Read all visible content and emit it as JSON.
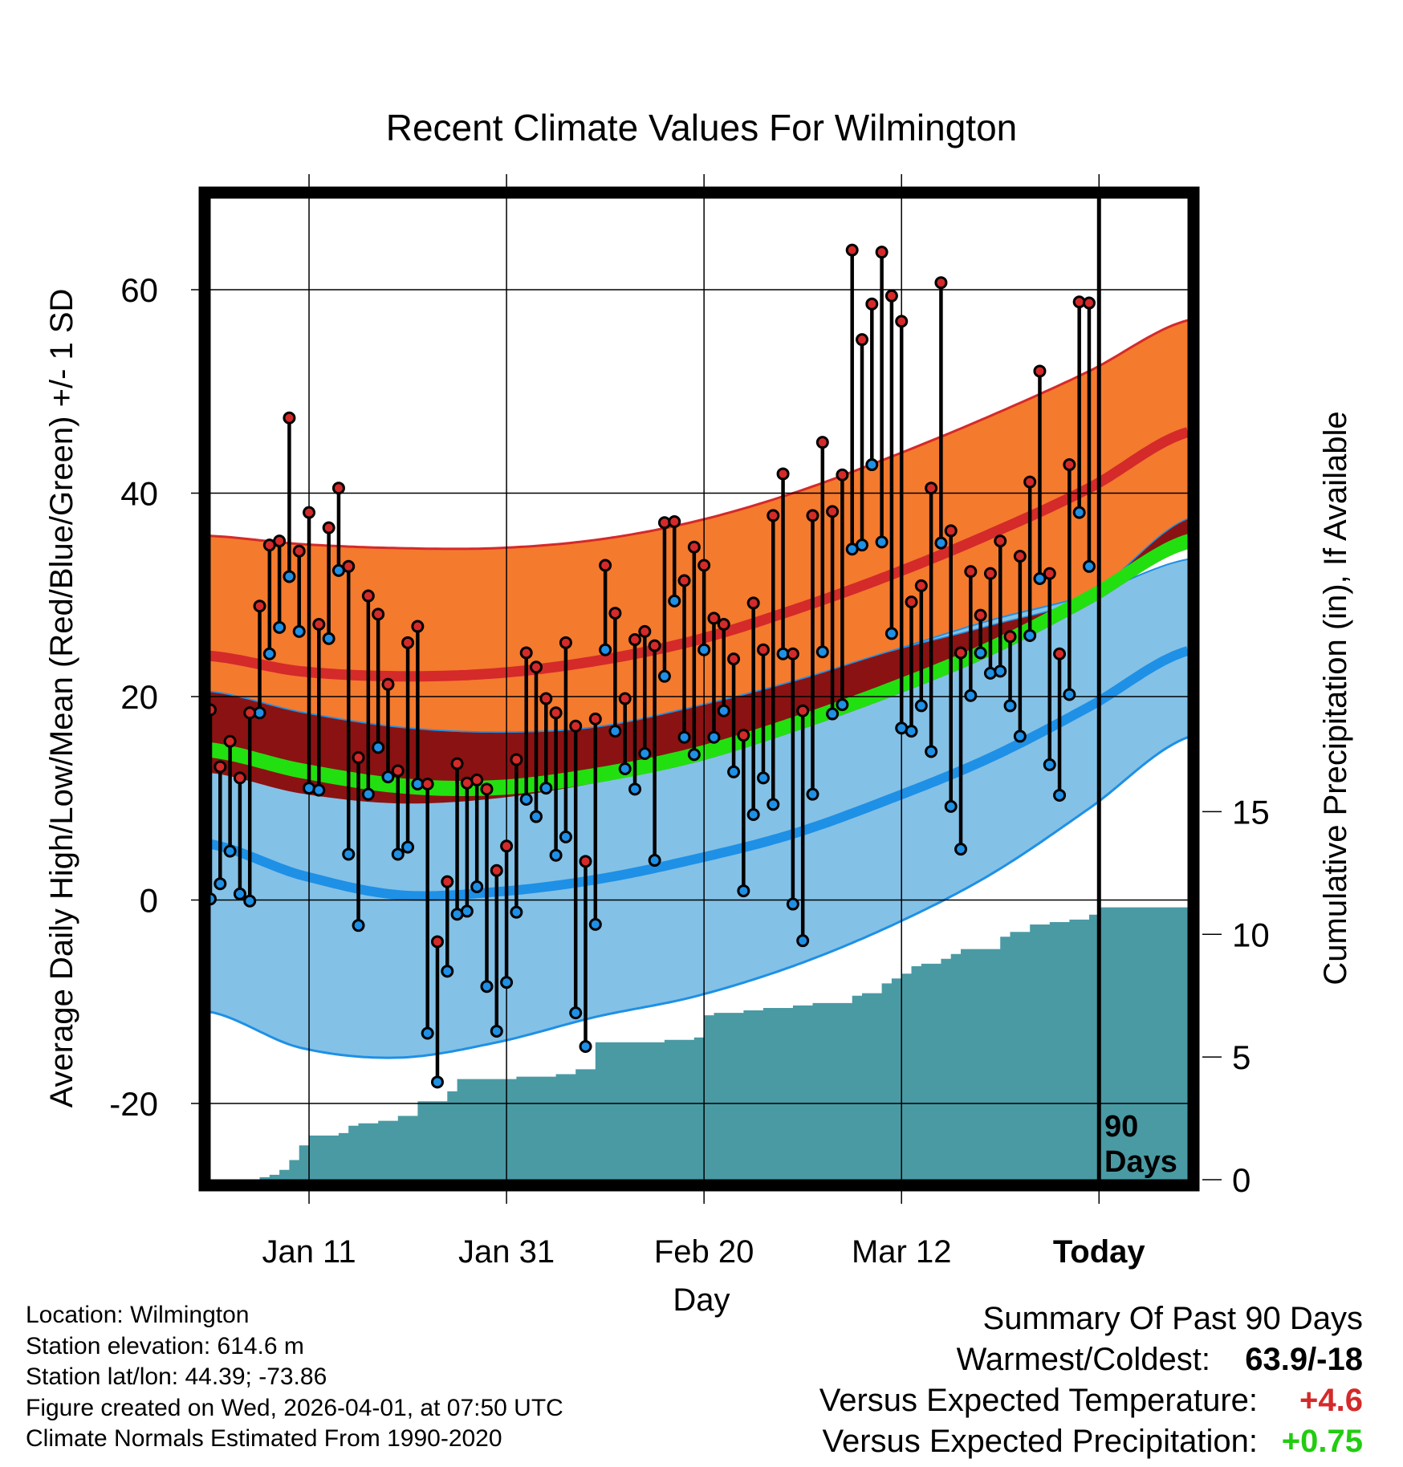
{
  "chart_data": {
    "type": "line",
    "title": "Recent Climate Values For Wilmington",
    "xlabel": "Day",
    "ylabel_left": "Average Daily High/Low/Mean (Red/Blue/Green) +/- 1 SD",
    "ylabel_right": "Cumulative Precipitation (in), If Available",
    "ylim_left": [
      -27.5,
      69
    ],
    "ylim_right": [
      0,
      40
    ],
    "xlim_days": [
      1,
      100
    ],
    "x_ticks": [
      {
        "day": 11,
        "label": "Jan 11"
      },
      {
        "day": 31,
        "label": "Jan 31"
      },
      {
        "day": 51,
        "label": "Feb 20"
      },
      {
        "day": 71,
        "label": "Mar 12"
      },
      {
        "day": 91,
        "label": "Today"
      }
    ],
    "y_ticks_left": [
      "60",
      "40",
      "20",
      "0",
      "-20"
    ],
    "y_ticks_right": [
      "15",
      "10",
      "5",
      "0"
    ],
    "today_marker": {
      "day": 91,
      "label_line1": "90",
      "label_line2": "Days"
    },
    "normals": {
      "days": [
        1,
        10,
        20,
        30,
        40,
        50,
        60,
        70,
        80,
        90,
        100
      ],
      "high_upper": [
        35.8,
        35.0,
        34.6,
        34.6,
        35.4,
        37.2,
        40.0,
        43.6,
        47.6,
        52.0,
        57.0
      ],
      "high_mean": [
        24.0,
        22.5,
        22.0,
        22.3,
        23.5,
        25.5,
        28.5,
        32.0,
        36.0,
        40.5,
        46.0
      ],
      "high_lower": [
        20.5,
        18.5,
        17.0,
        16.5,
        17.0,
        19.0,
        21.5,
        24.5,
        27.0,
        30.0,
        37.5
      ],
      "low_upper": [
        20.5,
        18.5,
        17.0,
        16.5,
        17.0,
        19.0,
        21.5,
        24.5,
        27.5,
        30.0,
        33.5
      ],
      "low_mean": [
        5.5,
        2.5,
        0.5,
        0.8,
        2.0,
        4.0,
        6.5,
        10.0,
        14.0,
        19.0,
        24.5
      ],
      "low_lower": [
        -11.0,
        -14.5,
        -15.5,
        -14.0,
        -11.5,
        -9.5,
        -6.5,
        -2.5,
        2.5,
        9.0,
        16.0
      ],
      "mean_upper": [
        15.5,
        13.5,
        12.0,
        11.8,
        13.0,
        15.0,
        18.0,
        21.5,
        25.5,
        30.5,
        36.0
      ],
      "mean_lower": [
        14.0,
        12.0,
        10.5,
        10.3,
        11.5,
        13.5,
        16.5,
        20.0,
        24.0,
        29.0,
        34.5
      ],
      "high_lower_margin_upper": [
        20.5,
        18.5,
        17.0,
        16.5,
        17.0,
        19.0,
        21.5,
        24.5,
        27.0,
        30.0,
        37.5
      ],
      "high_lower_margin_lower": [
        12.5,
        10.5,
        9.5,
        10.0,
        11.5,
        13.5,
        16.5,
        20.0,
        24.0,
        29.0,
        34.5
      ]
    },
    "series": [
      {
        "name": "Daily High",
        "color": "#d42a2a",
        "values": [
          18.7,
          13.1,
          15.6,
          12.0,
          18.4,
          28.9,
          34.9,
          35.3,
          47.4,
          34.3,
          38.1,
          27.1,
          36.6,
          40.5,
          32.8,
          14.0,
          29.9,
          28.1,
          21.2,
          12.7,
          25.3,
          26.9,
          11.4,
          -4.1,
          1.8,
          13.4,
          11.5,
          11.8,
          10.9,
          2.9,
          5.3,
          13.8,
          24.3,
          22.9,
          19.8,
          18.4,
          25.3,
          17.1,
          3.8,
          17.8,
          32.9,
          28.2,
          19.8,
          25.6,
          26.4,
          25.0,
          37.1,
          37.2,
          31.4,
          34.7,
          32.9,
          27.7,
          27.1,
          23.7,
          16.2,
          29.2,
          24.6,
          37.8,
          41.9,
          24.2,
          18.6,
          37.8,
          45.0,
          38.2,
          41.8,
          63.9,
          55.1,
          58.6,
          63.7,
          59.4,
          56.9,
          29.3,
          30.9,
          40.5,
          60.7,
          36.3,
          24.3,
          32.3,
          28.0,
          32.1,
          35.3,
          25.9,
          33.8,
          41.1,
          52.0,
          32.1,
          24.2,
          42.8,
          58.8,
          58.7
        ]
      },
      {
        "name": "Daily Low",
        "color": "#1e90e6",
        "values": [
          0.1,
          1.6,
          4.8,
          0.6,
          -0.1,
          18.4,
          24.2,
          26.8,
          31.8,
          26.4,
          11.0,
          10.8,
          25.7,
          32.4,
          4.5,
          -2.5,
          10.4,
          15.0,
          12.1,
          4.5,
          5.2,
          11.4,
          -13.1,
          -17.9,
          -7.0,
          -1.4,
          -1.1,
          1.3,
          -8.5,
          -12.9,
          -8.1,
          -1.2,
          9.9,
          8.2,
          11.0,
          4.4,
          6.2,
          -11.1,
          -14.4,
          -2.4,
          24.6,
          16.6,
          12.9,
          10.9,
          14.4,
          3.9,
          22.0,
          29.4,
          16.0,
          14.3,
          24.6,
          16.0,
          18.6,
          12.6,
          0.9,
          8.4,
          12.0,
          9.4,
          24.2,
          -0.4,
          -4.0,
          10.4,
          24.4,
          18.3,
          19.2,
          34.5,
          34.9,
          42.8,
          35.2,
          26.2,
          16.9,
          16.6,
          19.1,
          14.6,
          35.1,
          9.2,
          5.0,
          20.1,
          24.3,
          22.3,
          22.5,
          19.1,
          16.1,
          26.0,
          31.6,
          13.3,
          10.3,
          20.2,
          38.1,
          32.8
        ]
      }
    ],
    "precip": {
      "days": [
        1,
        6,
        7,
        8,
        9,
        10,
        11,
        12,
        13,
        14,
        15,
        16,
        17,
        18,
        20,
        22,
        23,
        25,
        26,
        27,
        28,
        30,
        32,
        36,
        38,
        40,
        41,
        47,
        50,
        51,
        52,
        53,
        55,
        57,
        60,
        62,
        66,
        67,
        69,
        70,
        71,
        72,
        73,
        74,
        75,
        76,
        77,
        79,
        80,
        81,
        82,
        84,
        85,
        86,
        88,
        90,
        91,
        92,
        100
      ],
      "values": [
        0,
        0.1,
        0.2,
        0.4,
        0.8,
        1.4,
        1.8,
        1.8,
        1.8,
        1.9,
        2.2,
        2.3,
        2.3,
        2.4,
        2.6,
        3.2,
        3.2,
        3.6,
        4.1,
        4.1,
        4.1,
        4.1,
        4.2,
        4.3,
        4.5,
        5.6,
        5.6,
        5.7,
        5.8,
        6.7,
        6.8,
        6.8,
        6.9,
        7.0,
        7.1,
        7.2,
        7.5,
        7.6,
        8.0,
        8.2,
        8.4,
        8.7,
        8.8,
        8.8,
        9.0,
        9.2,
        9.4,
        9.4,
        9.4,
        9.9,
        10.1,
        10.4,
        10.4,
        10.5,
        10.6,
        10.8,
        11.1,
        11.1,
        11.1
      ]
    }
  },
  "footer": {
    "location": "Location: Wilmington",
    "elevation": "Station elevation: 614.6 m",
    "latlon": "Station lat/lon: 44.39; -73.86",
    "created": "Figure created on Wed, 2026-04-01, at 07:50 UTC",
    "normals_note": "Climate Normals Estimated From 1990-2020"
  },
  "summary": {
    "title": "Summary Of Past 90 Days",
    "warmest_coldest_label": "Warmest/Coldest:",
    "warmest_coldest_value": "63.9/-18",
    "temp_label": "Versus Expected Temperature:",
    "temp_value": "+4.6",
    "precip_label": "Versus Expected Precipitation:",
    "precip_value": "+0.75"
  },
  "colors": {
    "high_band": "#f47a2e",
    "high_line": "#d42a2a",
    "low_band": "#84c1e6",
    "low_line": "#1e90e6",
    "mean_band": "#22e010",
    "overlap_band": "#8b1212",
    "precip": "#4a9aa4",
    "temp_value": "#d42a2a",
    "precip_value": "#22cc10"
  }
}
